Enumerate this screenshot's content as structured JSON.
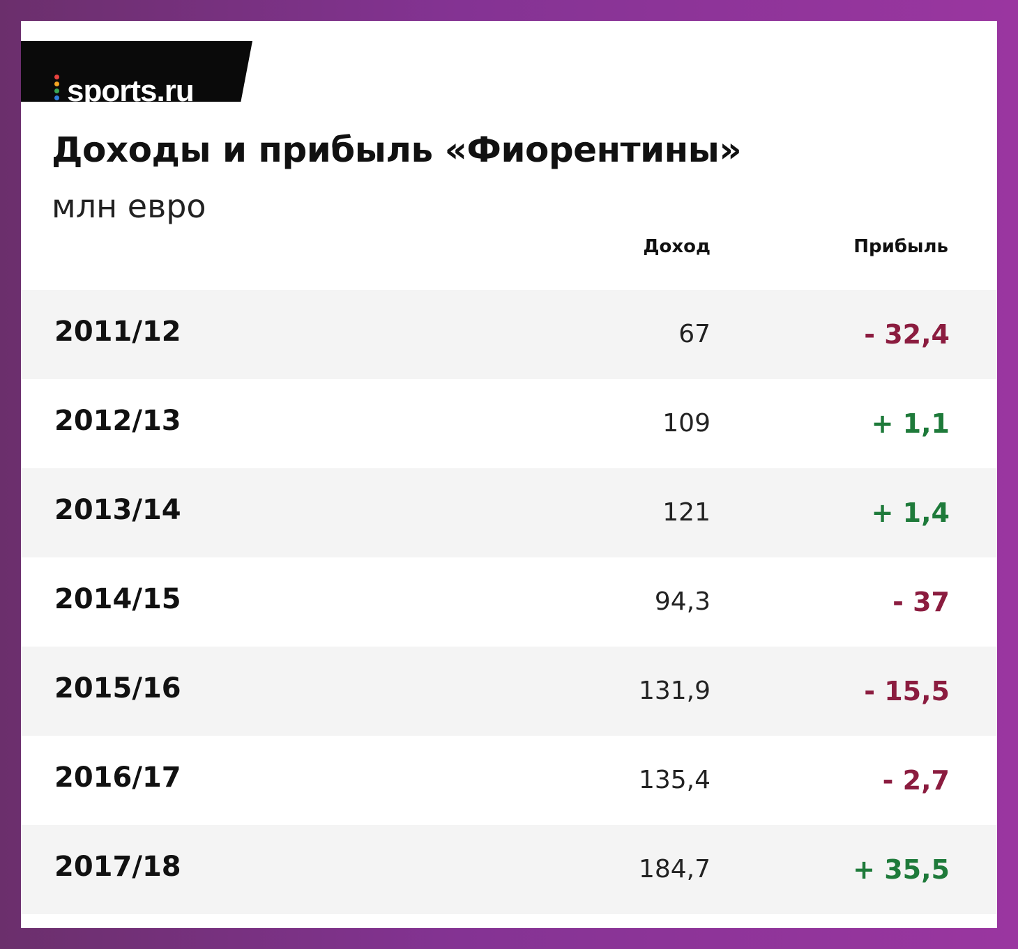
{
  "brand": {
    "logo_text": "sports.ru",
    "logo_dot_colors": [
      "#e8423f",
      "#f5a623",
      "#3aa655",
      "#2f7ddb",
      "#8a3fb5"
    ]
  },
  "colors": {
    "negative": "#8b1c3f",
    "positive": "#1e7a3a",
    "row_shade": "#f4f4f4"
  },
  "chart_data": {
    "type": "table",
    "title": "Доходы и прибыль «Фиорентины»",
    "subtitle": "млн евро",
    "columns": [
      "Доход",
      "Прибыль"
    ],
    "rows": [
      {
        "season": "2011/12",
        "income": "67",
        "profit": "- 32,4",
        "profit_value": -32.4
      },
      {
        "season": "2012/13",
        "income": "109",
        "profit": "+ 1,1",
        "profit_value": 1.1
      },
      {
        "season": "2013/14",
        "income": "121",
        "profit": "+ 1,4",
        "profit_value": 1.4
      },
      {
        "season": "2014/15",
        "income": "94,3",
        "profit": "- 37",
        "profit_value": -37
      },
      {
        "season": "2015/16",
        "income": "131,9",
        "profit": "- 15,5",
        "profit_value": -15.5
      },
      {
        "season": "2016/17",
        "income": "135,4",
        "profit": "- 2,7",
        "profit_value": -2.7
      },
      {
        "season": "2017/18",
        "income": "184,7",
        "profit": "+ 35,5",
        "profit_value": 35.5
      }
    ]
  }
}
